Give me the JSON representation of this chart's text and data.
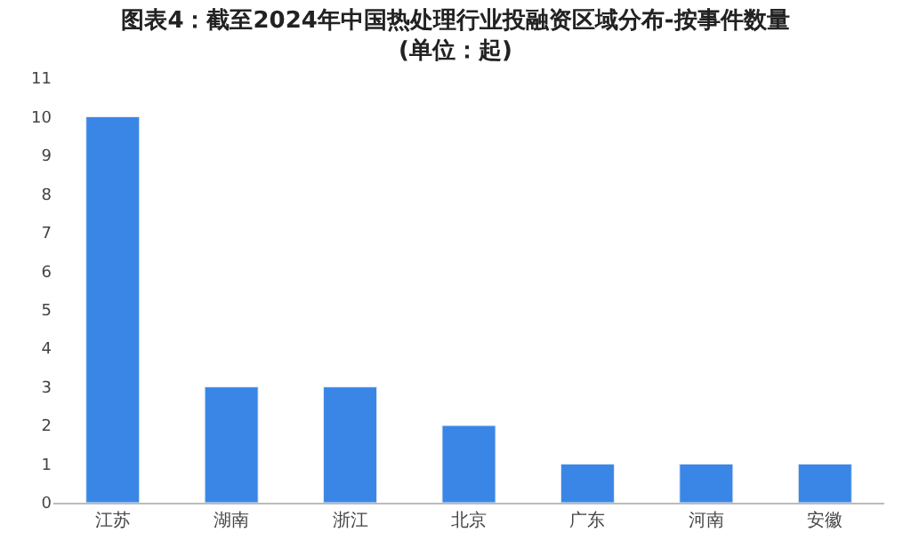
{
  "chart_data": {
    "type": "bar",
    "title": "图表4：截至2024年中国热处理行业投融资区域分布-按事件数量\n(单位：起)",
    "categories": [
      "江苏",
      "湖南",
      "浙江",
      "北京",
      "广东",
      "河南",
      "安徽"
    ],
    "values": [
      10,
      3,
      3,
      2,
      1,
      1,
      1
    ],
    "color": "#3a86e6",
    "ylim": [
      0,
      11
    ],
    "yticks": [
      0,
      1,
      2,
      3,
      4,
      5,
      6,
      7,
      8,
      9,
      10,
      11
    ]
  }
}
